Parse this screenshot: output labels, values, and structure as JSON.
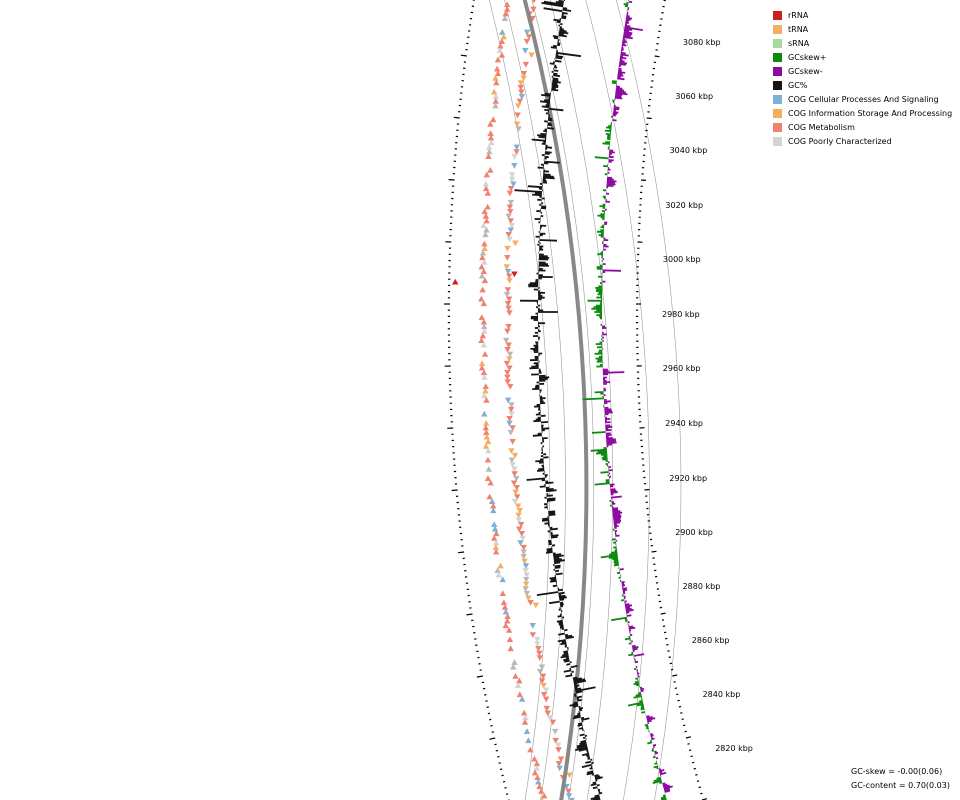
{
  "legend": {
    "items": [
      {
        "label": "rRNA",
        "color": "#cc2020"
      },
      {
        "label": "tRNA",
        "color": "#f5ad62"
      },
      {
        "label": "sRNA",
        "color": "#a9d99a"
      },
      {
        "label": "GCskew+",
        "color": "#0d8a0d"
      },
      {
        "label": "GCskew-",
        "color": "#8c0aa0"
      },
      {
        "label": "GC%",
        "color": "#151515"
      },
      {
        "label": "COG Cellular Processes And Signaling",
        "color": "#7fafd6"
      },
      {
        "label": "COG Information Storage And Processing",
        "color": "#f5ad62"
      },
      {
        "label": "COG Metabolism",
        "color": "#f08070"
      },
      {
        "label": "COG Poorly Characterized",
        "color": "#d4d4d4"
      }
    ]
  },
  "axis": {
    "tick_labels": [
      "3080 kbp",
      "3060 kbp",
      "3040 kbp",
      "3020 kbp",
      "3000 kbp",
      "2980 kbp",
      "2960 kbp",
      "2940 kbp",
      "2920 kbp",
      "2900 kbp",
      "2880 kbp",
      "2860 kbp",
      "2840 kbp",
      "2820 kbp"
    ]
  },
  "stats": {
    "gc_skew": "GC-skew = -0.00(0.06)",
    "gc_content": "GC-content = 0.70(0.03)"
  },
  "colors": {
    "backbone": "#888888",
    "guide_line": "#9a9a9a"
  }
}
